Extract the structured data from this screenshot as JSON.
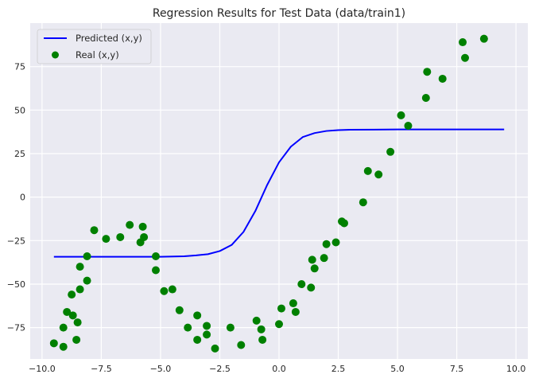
{
  "chart_data": {
    "type": "scatter",
    "title": "Regression Results for Test Data (data/train1)",
    "xlabel": "",
    "ylabel": "",
    "xlim": [
      -10.5,
      10.5
    ],
    "ylim": [
      -93,
      100
    ],
    "xticks": [
      -10.0,
      -7.5,
      -5.0,
      -2.5,
      0.0,
      2.5,
      5.0,
      7.5,
      10.0
    ],
    "xtick_labels": [
      "−10.0",
      "−7.5",
      "−5.0",
      "−2.5",
      "0.0",
      "2.5",
      "5.0",
      "7.5",
      "10.0"
    ],
    "yticks": [
      -75,
      -50,
      -25,
      0,
      25,
      50,
      75
    ],
    "ytick_labels": [
      "−75",
      "−50",
      "−25",
      "0",
      "25",
      "50",
      "75"
    ],
    "grid": true,
    "background": "#eaeaf2",
    "legend_position": "top-left",
    "series": [
      {
        "name": "Predicted (x,y)",
        "kind": "line",
        "color": "#0000ff",
        "points": [
          [
            -9.5,
            -34.3
          ],
          [
            -9.0,
            -34.3
          ],
          [
            -8.0,
            -34.3
          ],
          [
            -7.0,
            -34.3
          ],
          [
            -6.0,
            -34.3
          ],
          [
            -5.0,
            -34.3
          ],
          [
            -4.0,
            -34.0
          ],
          [
            -3.5,
            -33.5
          ],
          [
            -3.0,
            -32.8
          ],
          [
            -2.5,
            -31.0
          ],
          [
            -2.0,
            -27.5
          ],
          [
            -1.5,
            -20.0
          ],
          [
            -1.0,
            -8.0
          ],
          [
            -0.5,
            7.0
          ],
          [
            0.0,
            20.0
          ],
          [
            0.5,
            29.0
          ],
          [
            1.0,
            34.5
          ],
          [
            1.5,
            36.8
          ],
          [
            2.0,
            38.0
          ],
          [
            2.5,
            38.5
          ],
          [
            3.0,
            38.7
          ],
          [
            4.0,
            38.8
          ],
          [
            5.0,
            38.9
          ],
          [
            6.0,
            38.9
          ],
          [
            7.0,
            38.9
          ],
          [
            8.0,
            38.9
          ],
          [
            9.0,
            38.9
          ],
          [
            9.5,
            38.9
          ]
        ]
      },
      {
        "name": "Real (x,y)",
        "kind": "scatter",
        "color": "#008000",
        "points": [
          [
            -9.5,
            -84
          ],
          [
            -9.1,
            -86
          ],
          [
            -9.1,
            -75
          ],
          [
            -8.95,
            -66
          ],
          [
            -8.75,
            -56
          ],
          [
            -8.7,
            -68
          ],
          [
            -8.55,
            -82
          ],
          [
            -8.5,
            -72
          ],
          [
            -8.4,
            -53
          ],
          [
            -8.4,
            -40
          ],
          [
            -8.1,
            -48
          ],
          [
            -8.1,
            -34
          ],
          [
            -7.8,
            -19
          ],
          [
            -7.3,
            -24
          ],
          [
            -6.7,
            -23
          ],
          [
            -6.3,
            -16
          ],
          [
            -5.85,
            -26
          ],
          [
            -5.75,
            -17
          ],
          [
            -5.7,
            -23
          ],
          [
            -5.2,
            -34
          ],
          [
            -5.2,
            -42
          ],
          [
            -4.85,
            -54
          ],
          [
            -4.5,
            -53
          ],
          [
            -4.2,
            -65
          ],
          [
            -3.85,
            -75
          ],
          [
            -3.45,
            -82
          ],
          [
            -3.45,
            -68
          ],
          [
            -3.05,
            -74
          ],
          [
            -3.05,
            -79
          ],
          [
            -2.7,
            -87
          ],
          [
            -2.05,
            -75
          ],
          [
            -1.6,
            -85
          ],
          [
            -0.95,
            -71
          ],
          [
            -0.75,
            -76
          ],
          [
            -0.7,
            -82
          ],
          [
            0.0,
            -73
          ],
          [
            0.1,
            -64
          ],
          [
            0.6,
            -61
          ],
          [
            0.7,
            -66
          ],
          [
            0.95,
            -50
          ],
          [
            1.35,
            -52
          ],
          [
            1.4,
            -36
          ],
          [
            1.5,
            -41
          ],
          [
            1.9,
            -35
          ],
          [
            2.0,
            -27
          ],
          [
            2.4,
            -26
          ],
          [
            2.65,
            -14
          ],
          [
            2.75,
            -15
          ],
          [
            3.55,
            -3
          ],
          [
            3.75,
            15
          ],
          [
            4.2,
            13
          ],
          [
            4.7,
            26
          ],
          [
            5.15,
            47
          ],
          [
            5.45,
            41
          ],
          [
            6.2,
            57
          ],
          [
            6.25,
            72
          ],
          [
            6.9,
            68
          ],
          [
            7.75,
            89
          ],
          [
            7.85,
            80
          ],
          [
            8.65,
            91
          ]
        ]
      }
    ]
  }
}
